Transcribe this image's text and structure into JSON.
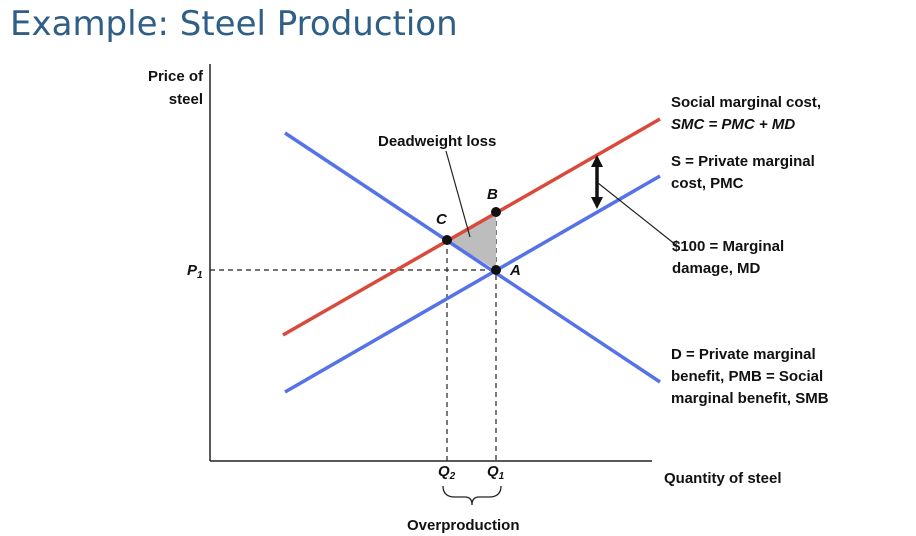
{
  "slide": {
    "title": "Example: Steel Production"
  },
  "axes": {
    "y_label_line1": "Price of",
    "y_label_line2": "steel",
    "x_label": "Quantity of steel"
  },
  "ticks": {
    "p1": "P",
    "p1_sub": "1",
    "q2": "Q",
    "q2_sub": "2",
    "q1": "Q",
    "q1_sub": "1"
  },
  "points": {
    "a": "A",
    "b": "B",
    "c": "C"
  },
  "annotations": {
    "deadweight_loss": "Deadweight loss",
    "overproduction": "Overproduction"
  },
  "curves": {
    "smc": {
      "line1": "Social marginal cost,",
      "line2": "SMC = PMC + MD",
      "color": "#d94a3a"
    },
    "pmc": {
      "line1": "S = Private marginal",
      "line2": "cost, PMC",
      "color": "#5572e8"
    },
    "md": {
      "line1": "$100 = Marginal",
      "line2": "damage, MD"
    },
    "demand": {
      "line1": "D = Private marginal",
      "line2": "benefit, PMB = Social",
      "line3": "marginal benefit, SMB",
      "color": "#5572e8"
    }
  }
}
